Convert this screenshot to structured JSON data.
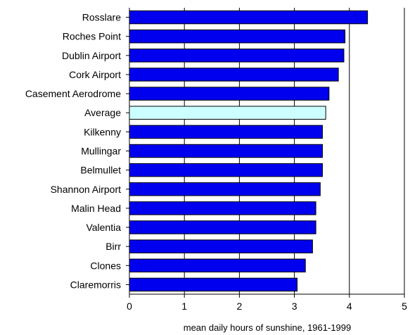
{
  "chart_data": {
    "type": "bar",
    "orientation": "horizontal",
    "title": "",
    "xlabel": "mean daily hours of sunshine, 1961-1999",
    "ylabel": "",
    "xlim": [
      0,
      5
    ],
    "xticks": [
      0,
      1,
      2,
      3,
      4,
      5
    ],
    "grid": "vertical lines at x-ticks",
    "legend": "none",
    "bars": [
      {
        "category": "Rosslare",
        "value": 4.33,
        "color": "#0000ee"
      },
      {
        "category": "Roches Point",
        "value": 3.92,
        "color": "#0000ee"
      },
      {
        "category": "Dublin Airport",
        "value": 3.9,
        "color": "#0000ee"
      },
      {
        "category": "Cork Airport",
        "value": 3.8,
        "color": "#0000ee"
      },
      {
        "category": "Casement Aerodrome",
        "value": 3.63,
        "color": "#0000ee"
      },
      {
        "category": "Average",
        "value": 3.57,
        "color": "#ccffff"
      },
      {
        "category": "Kilkenny",
        "value": 3.51,
        "color": "#0000ee"
      },
      {
        "category": "Mullingar",
        "value": 3.51,
        "color": "#0000ee"
      },
      {
        "category": "Belmullet",
        "value": 3.51,
        "color": "#0000ee"
      },
      {
        "category": "Shannon Airport",
        "value": 3.47,
        "color": "#0000ee"
      },
      {
        "category": "Malin Head",
        "value": 3.39,
        "color": "#0000ee"
      },
      {
        "category": "Valentia",
        "value": 3.39,
        "color": "#0000ee"
      },
      {
        "category": "Birr",
        "value": 3.33,
        "color": "#0000ee"
      },
      {
        "category": "Clones",
        "value": 3.2,
        "color": "#0000ee"
      },
      {
        "category": "Claremorris",
        "value": 3.05,
        "color": "#0000ee"
      }
    ]
  }
}
